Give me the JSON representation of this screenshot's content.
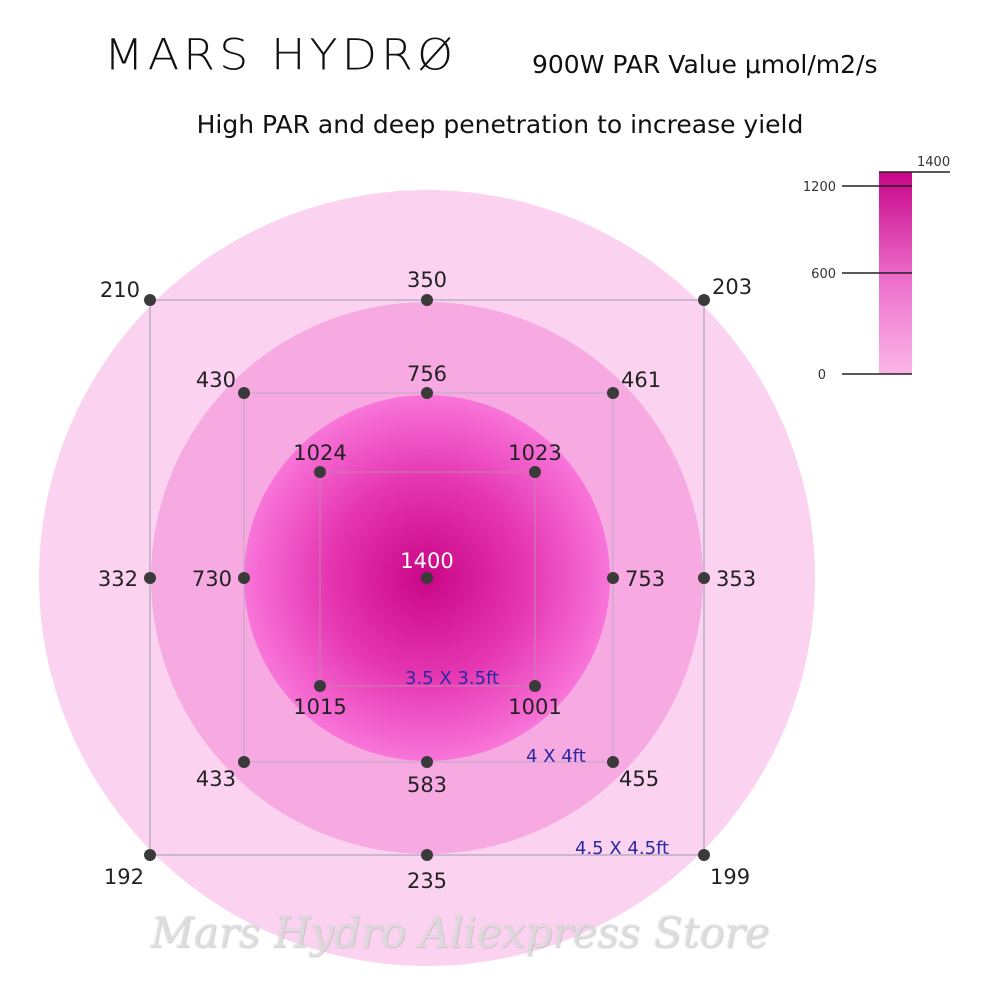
{
  "header": {
    "brand": "MARS HYDRØ",
    "title": "900W PAR Value μmol/m2/s",
    "subtitle": "High PAR and deep penetration to increase yield"
  },
  "watermark": "Mars Hydro Aliexpress Store",
  "colors": {
    "outer_ring": "#fbd3f0",
    "middle_ring": "#f7a9e1",
    "inner_core": "#d2148f",
    "inner_edge": "#f66ad0",
    "area_label": "#2a2aa0",
    "grid_line": "#9a9aaa"
  },
  "scale": {
    "max_label": "1400",
    "ticks": [
      "1200",
      "600",
      "0"
    ]
  },
  "areas": {
    "small": "3.5 X  3.5ft",
    "medium": "4 X  4ft",
    "large": "4.5 X  4.5ft"
  },
  "par_values": {
    "center": "1400",
    "inner": {
      "top_left": "1024",
      "top_right": "1023",
      "bottom_left": "1015",
      "bottom_right": "1001"
    },
    "middle": {
      "top_left": "430",
      "top": "756",
      "top_right": "461",
      "left": "730",
      "right": "753",
      "bottom_left": "433",
      "bottom": "583",
      "bottom_right": "455"
    },
    "outer": {
      "top_left": "210",
      "top": "350",
      "top_right": "203",
      "left": "332",
      "right": "353",
      "bottom_left": "192",
      "bottom": "235",
      "bottom_right": "199"
    }
  }
}
